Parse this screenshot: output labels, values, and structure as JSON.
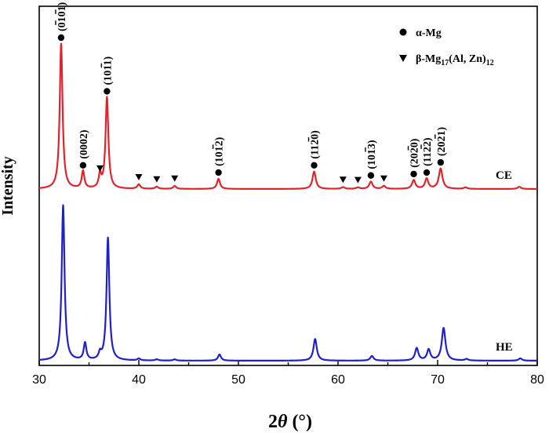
{
  "chart_data": {
    "type": "line",
    "xlabel_main": "2",
    "xlabel_theta": "θ",
    "xlabel_unit": " (°)",
    "ylabel": "Intensity",
    "xlim": [
      30,
      80
    ],
    "x_ticks": [
      "30",
      "40",
      "50",
      "60",
      "70",
      "80"
    ],
    "grid": false,
    "legend_position": "top-right",
    "legend": [
      {
        "marker": "circle",
        "label_main": "α-Mg"
      },
      {
        "marker": "triangle-down",
        "label_main": "β-Mg",
        "sub1": "17",
        "label_mid": "(Al, Zn)",
        "sub2": "12"
      }
    ],
    "series": [
      {
        "name": "CE",
        "color": "#e0242b",
        "baseline": 0.0,
        "background_slope": 0.0,
        "peaks": [
          {
            "x": 32.2,
            "h": 1.0,
            "w": 0.17
          },
          {
            "x": 34.4,
            "h": 0.12,
            "w": 0.16
          },
          {
            "x": 36.1,
            "h": 0.09,
            "w": 0.15
          },
          {
            "x": 36.8,
            "h": 0.63,
            "w": 0.17
          },
          {
            "x": 40.0,
            "h": 0.03,
            "w": 0.18
          },
          {
            "x": 41.8,
            "h": 0.015,
            "w": 0.18
          },
          {
            "x": 43.6,
            "h": 0.02,
            "w": 0.18
          },
          {
            "x": 48.0,
            "h": 0.07,
            "w": 0.18
          },
          {
            "x": 57.6,
            "h": 0.12,
            "w": 0.2
          },
          {
            "x": 60.5,
            "h": 0.012,
            "w": 0.2
          },
          {
            "x": 62.0,
            "h": 0.01,
            "w": 0.2
          },
          {
            "x": 63.3,
            "h": 0.05,
            "w": 0.2
          },
          {
            "x": 64.6,
            "h": 0.02,
            "w": 0.2
          },
          {
            "x": 67.6,
            "h": 0.06,
            "w": 0.2
          },
          {
            "x": 68.9,
            "h": 0.07,
            "w": 0.2
          },
          {
            "x": 70.3,
            "h": 0.14,
            "w": 0.22
          },
          {
            "x": 72.8,
            "h": 0.01,
            "w": 0.2
          },
          {
            "x": 78.2,
            "h": 0.015,
            "w": 0.2
          }
        ]
      },
      {
        "name": "HE",
        "color": "#1f1fcc",
        "baseline": 0.0,
        "background_slope": 0.0,
        "peaks": [
          {
            "x": 32.4,
            "h": 1.0,
            "w": 0.17
          },
          {
            "x": 34.6,
            "h": 0.11,
            "w": 0.16
          },
          {
            "x": 36.1,
            "h": 0.04,
            "w": 0.15
          },
          {
            "x": 36.9,
            "h": 0.79,
            "w": 0.17
          },
          {
            "x": 40.0,
            "h": 0.012,
            "w": 0.18
          },
          {
            "x": 41.8,
            "h": 0.008,
            "w": 0.18
          },
          {
            "x": 43.6,
            "h": 0.008,
            "w": 0.18
          },
          {
            "x": 48.1,
            "h": 0.04,
            "w": 0.18
          },
          {
            "x": 57.7,
            "h": 0.14,
            "w": 0.2
          },
          {
            "x": 63.4,
            "h": 0.03,
            "w": 0.2
          },
          {
            "x": 67.9,
            "h": 0.08,
            "w": 0.2
          },
          {
            "x": 69.1,
            "h": 0.07,
            "w": 0.2
          },
          {
            "x": 70.6,
            "h": 0.21,
            "w": 0.22
          },
          {
            "x": 72.9,
            "h": 0.01,
            "w": 0.2
          },
          {
            "x": 78.3,
            "h": 0.015,
            "w": 0.2
          }
        ]
      }
    ],
    "alpha_mg_markers_CE": [
      {
        "x": 32.2,
        "y": 1.0
      },
      {
        "x": 34.4,
        "y": 0.12
      },
      {
        "x": 36.8,
        "y": 0.63
      },
      {
        "x": 48.0,
        "y": 0.07
      },
      {
        "x": 57.6,
        "y": 0.12
      },
      {
        "x": 63.3,
        "y": 0.05
      },
      {
        "x": 67.6,
        "y": 0.06
      },
      {
        "x": 68.9,
        "y": 0.07
      },
      {
        "x": 70.3,
        "y": 0.14
      }
    ],
    "beta_markers_CE": [
      {
        "x": 36.1,
        "y": 0.09
      },
      {
        "x": 40.0,
        "y": 0.03
      },
      {
        "x": 41.8,
        "y": 0.015
      },
      {
        "x": 43.6,
        "y": 0.02
      },
      {
        "x": 60.5,
        "y": 0.012
      },
      {
        "x": 62.0,
        "y": 0.01
      },
      {
        "x": 64.6,
        "y": 0.02
      }
    ],
    "peak_labels": [
      {
        "x": 32.2,
        "y": 1.0,
        "text": "(0101)",
        "bars": [
          1,
          3
        ],
        "vertical": true
      },
      {
        "x": 34.4,
        "y": 0.12,
        "text": "(0002)",
        "bars": [],
        "vertical": true
      },
      {
        "x": 36.8,
        "y": 0.63,
        "text": "(1011)",
        "bars": [
          3
        ],
        "vertical": true
      },
      {
        "x": 48.0,
        "y": 0.07,
        "text": "(1012)",
        "bars": [
          3
        ],
        "vertical": true
      },
      {
        "x": 57.6,
        "y": 0.12,
        "text": "(1120)",
        "bars": [
          3
        ],
        "vertical": true
      },
      {
        "x": 63.3,
        "y": 0.05,
        "text": "(1013)",
        "bars": [
          3
        ],
        "vertical": true
      },
      {
        "x": 67.6,
        "y": 0.06,
        "text": "(2020)",
        "bars": [
          3
        ],
        "vertical": true
      },
      {
        "x": 68.9,
        "y": 0.07,
        "text": "(1122)",
        "bars": [
          3
        ],
        "vertical": true
      },
      {
        "x": 70.3,
        "y": 0.14,
        "text": "(2021)",
        "bars": [
          3
        ],
        "vertical": true
      }
    ]
  }
}
